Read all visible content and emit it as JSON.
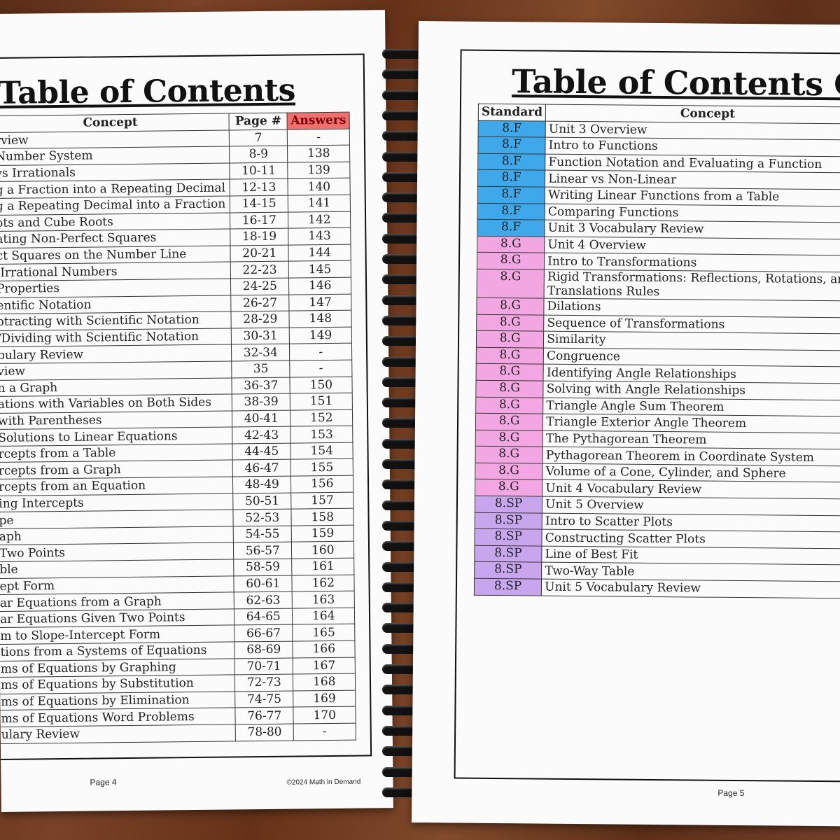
{
  "left_page": {
    "title": "Table of Contents",
    "headers": {
      "concept": "Concept",
      "page": "Page #",
      "answers": "Answers"
    },
    "answers_header_color": "#f07070",
    "rows": [
      {
        "concept": "rview",
        "page": "7",
        "answers": "-"
      },
      {
        "concept": "Number System",
        "page": "8-9",
        "answers": "138"
      },
      {
        "concept": "vs Irrationals",
        "page": "10-11",
        "answers": "139"
      },
      {
        "concept": "g a Fraction into a Repeating Decimal",
        "page": "12-13",
        "answers": "140"
      },
      {
        "concept": "g a Repeating Decimal into a Fraction",
        "page": "14-15",
        "answers": "141"
      },
      {
        "concept": "ots and Cube Roots",
        "page": "16-17",
        "answers": "142"
      },
      {
        "concept": "ating Non-Perfect Squares",
        "page": "18-19",
        "answers": "143"
      },
      {
        "concept": "ct Squares on the Number Line",
        "page": "20-21",
        "answers": "144"
      },
      {
        "concept": " Irrational Numbers",
        "page": "22-23",
        "answers": "145"
      },
      {
        "concept": "Properties",
        "page": "24-25",
        "answers": "146"
      },
      {
        "concept": "entific Notation",
        "page": "26-27",
        "answers": "147"
      },
      {
        "concept": "otracting with Scientific Notation",
        "page": "28-29",
        "answers": "148"
      },
      {
        "concept": "/Dividing with Scientific Notation",
        "page": "30-31",
        "answers": "149"
      },
      {
        "concept": "bulary Review",
        "page": "32-34",
        "answers": "-"
      },
      {
        "concept": "view",
        "page": "35",
        "answers": "-"
      },
      {
        "concept": "n a Graph",
        "page": "36-37",
        "answers": "150"
      },
      {
        "concept": "ations with Variables on Both Sides",
        "page": "38-39",
        "answers": "151"
      },
      {
        "concept": "with Parentheses",
        "page": "40-41",
        "answers": "152"
      },
      {
        "concept": "Solutions to Linear Equations",
        "page": "42-43",
        "answers": "153"
      },
      {
        "concept": "rcepts from a Table",
        "page": "44-45",
        "answers": "154"
      },
      {
        "concept": "rcepts from a Graph",
        "page": "46-47",
        "answers": "155"
      },
      {
        "concept": "rcepts from an Equation",
        "page": "48-49",
        "answers": "156"
      },
      {
        "concept": "ing Intercepts",
        "page": "50-51",
        "answers": "157"
      },
      {
        "concept": "pe",
        "page": "52-53",
        "answers": "158"
      },
      {
        "concept": "aph",
        "page": "54-55",
        "answers": "159"
      },
      {
        "concept": "Two Points",
        "page": "56-57",
        "answers": "160"
      },
      {
        "concept": "ble",
        "page": "58-59",
        "answers": "161"
      },
      {
        "concept": "ept Form",
        "page": "60-61",
        "answers": "162"
      },
      {
        "concept": "ar Equations from a Graph",
        "page": "62-63",
        "answers": "163"
      },
      {
        "concept": "ar Equations Given Two Points",
        "page": "64-65",
        "answers": "164"
      },
      {
        "concept": "m to Slope-Intercept Form",
        "page": "66-67",
        "answers": "165"
      },
      {
        "concept": "tions from a Systems of Equations",
        "page": "68-69",
        "answers": "166"
      },
      {
        "concept": "ms of Equations by Graphing",
        "page": "70-71",
        "answers": "167"
      },
      {
        "concept": "ms of Equations by Substitution",
        "page": "72-73",
        "answers": "168"
      },
      {
        "concept": "ms of Equations by Elimination",
        "page": "74-75",
        "answers": "169"
      },
      {
        "concept": "ms of Equations Word Problems",
        "page": "76-77",
        "answers": "170"
      },
      {
        "concept": "ulary Review",
        "page": "78-80",
        "answers": "-"
      }
    ],
    "footer_page": "Page 4",
    "footer_copyright": "©2024 Math in Demand"
  },
  "right_page": {
    "title": "Table of Contents Con",
    "headers": {
      "standard": "Standard",
      "concept": "Concept"
    },
    "standard_colors": {
      "8.F": "#3ea8ea",
      "8.G": "#f3a7e2",
      "8.SP": "#c8a6ee"
    },
    "rows": [
      {
        "standard": "8.F",
        "concept": "Unit 3 Overview"
      },
      {
        "standard": "8.F",
        "concept": "Intro to Functions"
      },
      {
        "standard": "8.F",
        "concept": "Function Notation and Evaluating a Function"
      },
      {
        "standard": "8.F",
        "concept": "Linear vs Non-Linear"
      },
      {
        "standard": "8.F",
        "concept": "Writing Linear Functions from a Table"
      },
      {
        "standard": "8.F",
        "concept": "Comparing Functions"
      },
      {
        "standard": "8.F",
        "concept": "Unit 3 Vocabulary Review"
      },
      {
        "standard": "8.G",
        "concept": "Unit 4 Overview"
      },
      {
        "standard": "8.G",
        "concept": "Intro to Transformations"
      },
      {
        "standard": "8.G",
        "concept": "Rigid Transformations: Reflections, Rotations, and",
        "concept_line2": "Translations Rules"
      },
      {
        "standard": "8.G",
        "concept": "Dilations"
      },
      {
        "standard": "8.G",
        "concept": "Sequence of Transformations"
      },
      {
        "standard": "8.G",
        "concept": "Similarity"
      },
      {
        "standard": "8.G",
        "concept": "Congruence"
      },
      {
        "standard": "8.G",
        "concept": "Identifying Angle Relationships"
      },
      {
        "standard": "8.G",
        "concept": "Solving with Angle Relationships"
      },
      {
        "standard": "8.G",
        "concept": "Triangle Angle Sum Theorem"
      },
      {
        "standard": "8.G",
        "concept": "Triangle Exterior Angle Theorem"
      },
      {
        "standard": "8.G",
        "concept": "The Pythagorean Theorem"
      },
      {
        "standard": "8.G",
        "concept": "Pythagorean Theorem in Coordinate System"
      },
      {
        "standard": "8.G",
        "concept": "Volume of a Cone, Cylinder, and Sphere"
      },
      {
        "standard": "8.G",
        "concept": "Unit 4 Vocabulary Review"
      },
      {
        "standard": "8.SP",
        "concept": "Unit 5 Overview"
      },
      {
        "standard": "8.SP",
        "concept": "Intro to Scatter Plots"
      },
      {
        "standard": "8.SP",
        "concept": "Constructing Scatter Plots"
      },
      {
        "standard": "8.SP",
        "concept": "Line of Best Fit"
      },
      {
        "standard": "8.SP",
        "concept": "Two-Way Table"
      },
      {
        "standard": "8.SP",
        "concept": "Unit 5 Vocabulary Review"
      }
    ],
    "footer_page": "Page 5"
  }
}
